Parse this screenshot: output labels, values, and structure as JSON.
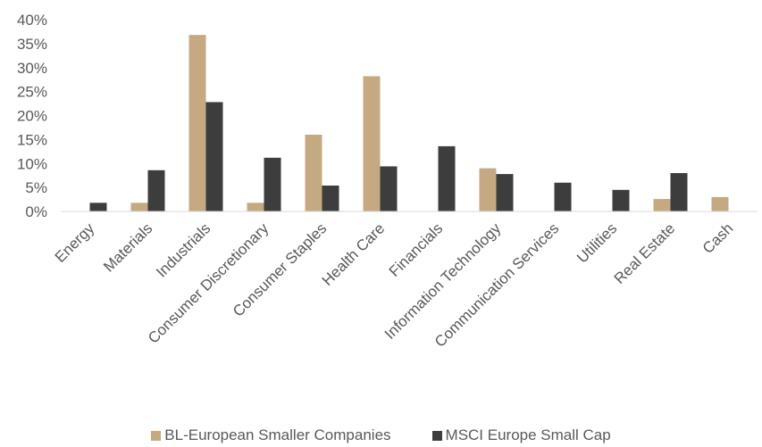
{
  "chart_data": {
    "type": "bar",
    "categories": [
      "Energy",
      "Materials",
      "Industrials",
      "Consumer Discretionary",
      "Consumer Staples",
      "Health Care",
      "Financials",
      "Information Technology",
      "Communication Services",
      "Utilities",
      "Real Estate",
      "Cash"
    ],
    "series": [
      {
        "name": "BL-European Smaller Companies",
        "color": "#c5a982",
        "values": [
          0,
          1.8,
          36.8,
          1.8,
          16.0,
          28.2,
          0,
          9.0,
          0,
          0,
          2.6,
          3.0
        ]
      },
      {
        "name": "MSCI Europe Small Cap",
        "color": "#3d3d3d",
        "values": [
          1.8,
          8.6,
          22.8,
          11.2,
          5.4,
          9.4,
          13.6,
          7.8,
          6.0,
          4.5,
          8.0,
          0
        ]
      }
    ],
    "yticks": [
      "0%",
      "5%",
      "10%",
      "15%",
      "20%",
      "25%",
      "30%",
      "35%",
      "40%"
    ],
    "ylim": [
      0,
      40
    ],
    "grid": false,
    "legend_position": "bottom"
  }
}
